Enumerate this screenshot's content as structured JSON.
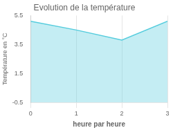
{
  "chart_data": {
    "type": "area",
    "title": "Evolution de la température",
    "xlabel": "heure par heure",
    "ylabel": "Température en °C",
    "x": [
      0,
      1,
      2,
      3
    ],
    "values": [
      5.1,
      4.5,
      3.8,
      5.1
    ],
    "color": "#55ccdd",
    "xlim": [
      0,
      3
    ],
    "ylim": [
      -0.5,
      5.5
    ],
    "xticks": [
      0,
      1,
      2,
      3
    ],
    "yticks": [
      -0.5,
      1.5,
      3.5,
      5.5
    ],
    "grid": "x"
  }
}
